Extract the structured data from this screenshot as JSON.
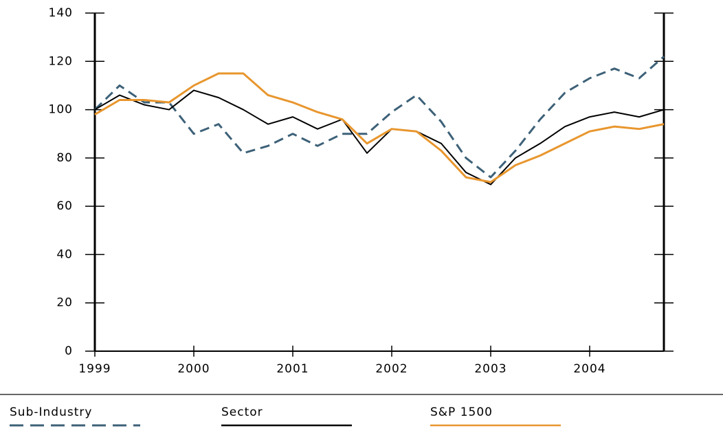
{
  "chart_data": {
    "type": "line",
    "x": [
      1999,
      1999.25,
      1999.5,
      1999.75,
      2000,
      2000.25,
      2000.5,
      2000.75,
      2001,
      2001.25,
      2001.5,
      2001.75,
      2002,
      2002.25,
      2002.5,
      2002.75,
      2003,
      2003.25,
      2003.5,
      2003.75,
      2004,
      2004.25,
      2004.5,
      2004.75
    ],
    "series": [
      {
        "name": "Sub-Industry",
        "color": "#3d6178",
        "dash": true,
        "values": [
          100,
          110,
          103,
          103,
          90,
          94,
          82,
          85,
          90,
          85,
          90,
          90,
          99,
          106,
          95,
          80,
          72,
          83,
          96,
          107,
          113,
          117,
          113,
          122
        ]
      },
      {
        "name": "Sector",
        "color": "#000000",
        "dash": false,
        "values": [
          100,
          106,
          102,
          100,
          108,
          105,
          100,
          94,
          97,
          92,
          96,
          82,
          92,
          91,
          86,
          74,
          69,
          80,
          86,
          93,
          97,
          99,
          97,
          100
        ]
      },
      {
        "name": "S&P 1500",
        "color": "#e8962e",
        "dash": false,
        "values": [
          98,
          104,
          104,
          103,
          110,
          115,
          115,
          106,
          103,
          99,
          96,
          86,
          92,
          91,
          83,
          72,
          70,
          77,
          81,
          86,
          91,
          93,
          92,
          94
        ]
      }
    ],
    "xlim": [
      1999,
      2004.75
    ],
    "xticks": [
      1999,
      2000,
      2001,
      2002,
      2003,
      2004
    ],
    "ylim": [
      0,
      140
    ],
    "yticks": [
      0,
      20,
      40,
      60,
      80,
      100,
      120,
      140
    ]
  }
}
